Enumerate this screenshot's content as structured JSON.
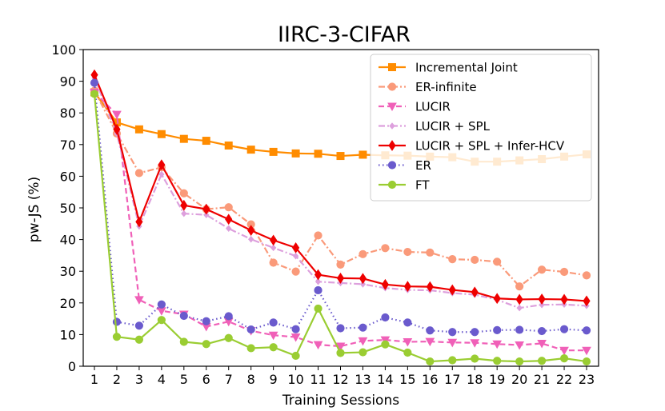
{
  "chart_data": {
    "type": "line",
    "title": "IIRC-3-CIFAR",
    "xlabel": "Training Sessions",
    "ylabel": "pw-JS (%)",
    "xlim": [
      1,
      23
    ],
    "ylim": [
      0,
      100
    ],
    "x": [
      1,
      2,
      3,
      4,
      5,
      6,
      7,
      8,
      9,
      10,
      11,
      12,
      13,
      14,
      15,
      16,
      17,
      18,
      19,
      20,
      21,
      22,
      23
    ],
    "x_tick_labels": [
      "1",
      "2",
      "3",
      "4",
      "5",
      "6",
      "7",
      "8",
      "9",
      "10",
      "11",
      "12",
      "13",
      "14",
      "15",
      "16",
      "17",
      "18",
      "19",
      "20",
      "21",
      "22",
      "23"
    ],
    "y_ticks": [
      0,
      10,
      20,
      30,
      40,
      50,
      60,
      70,
      80,
      90,
      100
    ],
    "y_tick_labels": [
      "0",
      "10",
      "20",
      "30",
      "40",
      "50",
      "60",
      "70",
      "80",
      "90",
      "100"
    ],
    "legend_position": "top-right",
    "series": [
      {
        "name": "Incremental Joint",
        "color": "#ff8c00",
        "line": "solid",
        "marker": "square",
        "values": [
          86.5,
          77,
          74.8,
          73.3,
          71.8,
          71.2,
          69.7,
          68.4,
          67.7,
          67.2,
          67.1,
          66.4,
          66.8,
          66.6,
          66.5,
          66.2,
          66,
          64.6,
          64.6,
          65,
          65.4,
          66.2,
          66.9
        ]
      },
      {
        "name": "ER-infinite",
        "color": "#fa9a7a",
        "line": "dashdot",
        "marker": "circle",
        "values": [
          87,
          73.5,
          61,
          62.8,
          54.6,
          49.6,
          50.2,
          44.8,
          32.7,
          29.9,
          41.3,
          32.1,
          35.4,
          37.3,
          36.1,
          35.9,
          33.8,
          33.6,
          33,
          25.2,
          30.5,
          29.8,
          28.7
        ]
      },
      {
        "name": "LUCIR",
        "color": "#f060b8",
        "line": "dashed",
        "marker": "triangle-down",
        "values": [
          86.5,
          79.5,
          21,
          17.5,
          16.4,
          12.5,
          14.1,
          11.2,
          9.8,
          9.2,
          6.8,
          6.3,
          8,
          8.3,
          7.7,
          7.8,
          7.5,
          7.4,
          7,
          6.7,
          7.2,
          5,
          5
        ]
      },
      {
        "name": "LUCIR + SPL",
        "color": "#dda0dd",
        "line": "dashdot",
        "marker": "diamond-small",
        "values": [
          91,
          73.5,
          44.2,
          60.6,
          48.2,
          47.8,
          43.5,
          40.1,
          37.4,
          34.8,
          26.7,
          26.3,
          25.9,
          24.7,
          24.1,
          24,
          23.1,
          22.6,
          21,
          18.4,
          19.4,
          19.5,
          19.1
        ]
      },
      {
        "name": "LUCIR + SPL + Infer-HCV",
        "color": "#ee0000",
        "line": "solid",
        "marker": "diamond",
        "values": [
          92,
          74.8,
          45.6,
          63.6,
          50.8,
          49.6,
          46.4,
          42.9,
          39.8,
          37.4,
          28.9,
          27.8,
          27.7,
          25.8,
          25.2,
          25.1,
          24.1,
          23.4,
          21.4,
          21.1,
          21.2,
          21.1,
          20.6
        ]
      },
      {
        "name": "ER",
        "color": "#6a5acd",
        "line": "dotted",
        "marker": "circle",
        "values": [
          89.5,
          14,
          12.8,
          19.5,
          15.9,
          14.2,
          15.8,
          11.6,
          13.8,
          11.7,
          24,
          12,
          12.2,
          15.4,
          13.8,
          11.3,
          10.8,
          10.8,
          11.4,
          11.5,
          11.1,
          11.7,
          11.3
        ]
      },
      {
        "name": "FT",
        "color": "#9acd32",
        "line": "solid",
        "marker": "circle",
        "values": [
          86,
          9.3,
          8.4,
          14.6,
          7.7,
          7,
          8.9,
          5.7,
          6,
          3.3,
          18.2,
          4.2,
          4.4,
          6.9,
          4.3,
          1.5,
          1.9,
          2.4,
          1.7,
          1.5,
          1.7,
          2.5,
          1.5
        ]
      }
    ]
  }
}
